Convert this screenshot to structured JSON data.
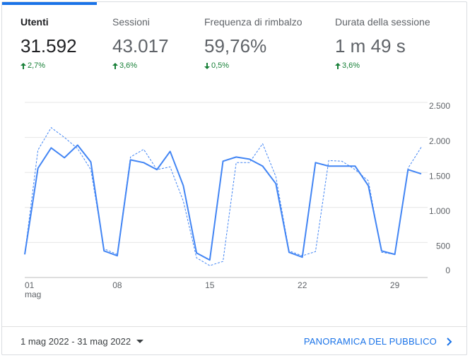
{
  "tabs": [
    {
      "title": "Utenti",
      "value": "31.592",
      "change": "2,7%"
    },
    {
      "title": "Sessioni",
      "value": "43.017",
      "change": "3,6%"
    },
    {
      "title": "Frequenza di rimbalzo",
      "value": "59,76%",
      "change": "0,5%"
    },
    {
      "title": "Durata della sessione",
      "value": "1 m 49 s",
      "change": "3,6%"
    }
  ],
  "chart_data": {
    "type": "line",
    "categories": [
      "01",
      null,
      null,
      null,
      null,
      null,
      null,
      "08",
      null,
      null,
      null,
      null,
      null,
      null,
      "15",
      null,
      null,
      null,
      null,
      null,
      null,
      "22",
      null,
      null,
      null,
      null,
      null,
      null,
      "29",
      null,
      null
    ],
    "x_sublabel": "mag",
    "series": [
      {
        "color": "#4285f4",
        "dashed": false,
        "values": [
          330,
          1560,
          1850,
          1710,
          1890,
          1650,
          380,
          310,
          1680,
          1640,
          1540,
          1800,
          1310,
          350,
          250,
          1660,
          1720,
          1690,
          1590,
          1340,
          360,
          290,
          1640,
          1590,
          1590,
          1590,
          1310,
          380,
          330,
          1540,
          1480
        ]
      },
      {
        "color": "#4285f4",
        "dashed": true,
        "values": [
          330,
          1820,
          2140,
          2000,
          1840,
          1540,
          410,
          330,
          1720,
          1830,
          1540,
          1580,
          1090,
          280,
          170,
          230,
          1640,
          1640,
          1910,
          1440,
          380,
          310,
          370,
          1670,
          1660,
          1540,
          1380,
          360,
          330,
          1560,
          1860
        ]
      }
    ],
    "ylim": [
      0,
      2500
    ],
    "yticks": [
      0,
      500,
      {
        "value": 1000,
        "label": "1.000"
      },
      {
        "value": 1500,
        "label": "1.500"
      },
      {
        "value": 2000,
        "label": "2.000"
      },
      {
        "value": 2500,
        "label": "2.500"
      }
    ],
    "grid": true
  },
  "footer": {
    "date_range": "1 mag 2022 - 31 mag 2022",
    "link": "PANORAMICA DEL PUBBLICO"
  }
}
